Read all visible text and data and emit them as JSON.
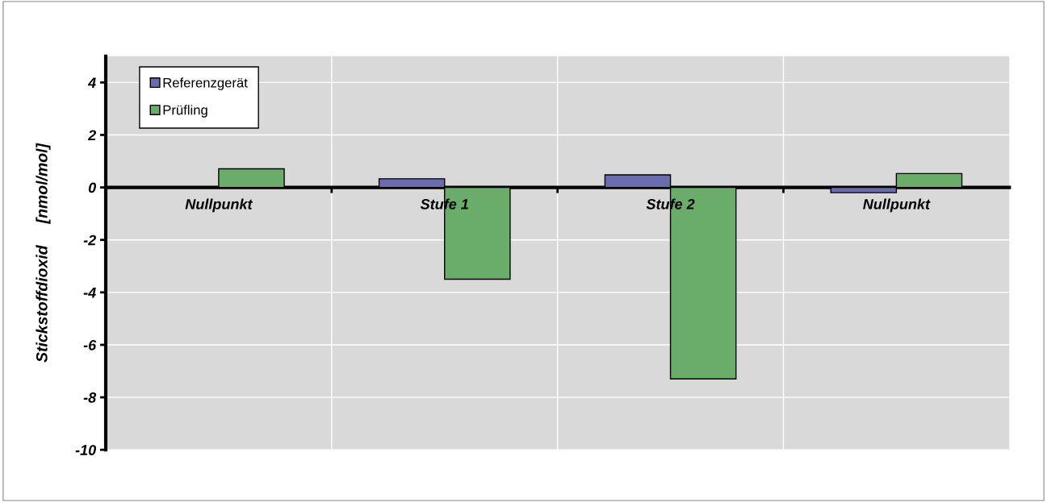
{
  "chart_data": {
    "type": "bar",
    "ylabel": "Stickstoffdioxid     [nmol/mol]",
    "categories": [
      "Nullpunkt",
      "Stufe 1",
      "Stufe 2",
      "Nullpunkt"
    ],
    "series": [
      {
        "name": "Referenzgerät",
        "color": "#6b6baf",
        "values": [
          null,
          0.33,
          0.48,
          -0.2
        ]
      },
      {
        "name": "Prüfling",
        "color": "#6aad6a",
        "values": [
          0.71,
          -3.5,
          -7.3,
          0.53
        ]
      }
    ],
    "ylim": [
      -10,
      5
    ],
    "yticks": [
      -10,
      -8,
      -6,
      -4,
      -2,
      0,
      2,
      4
    ],
    "grid": true,
    "legend": "top left"
  }
}
